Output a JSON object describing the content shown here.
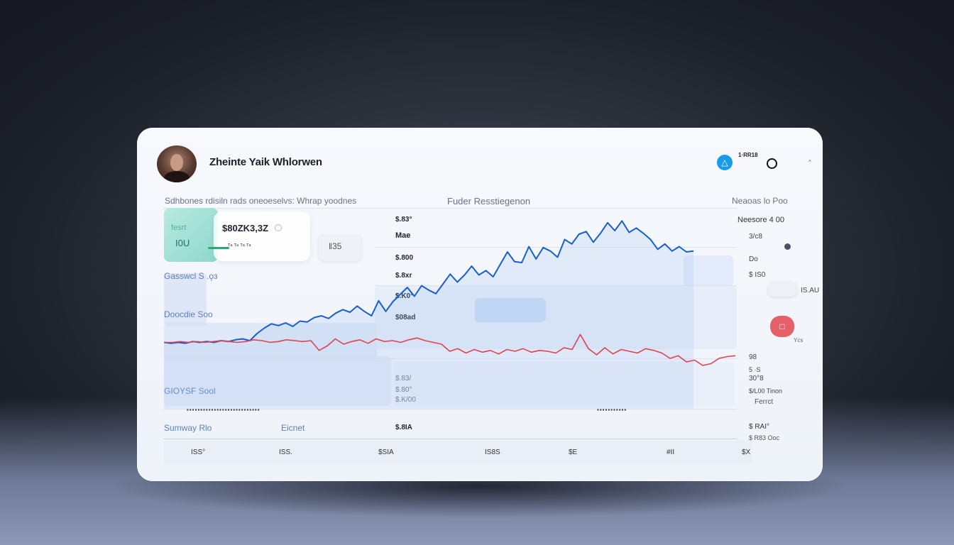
{
  "header": {
    "title": "Zheinte Yaik Whlorwen",
    "icon_a": "triangle-icon",
    "icon_b": "circle-icon",
    "corner_text": "1·RR18",
    "chevron": "^"
  },
  "subheader": {
    "left": "Sdhbones rdisiln rads  oneoeselvs: Whrap yoodnes",
    "center": "Fuder Resstiegenon",
    "right": "Neaoas lo Poo"
  },
  "stats": {
    "teal_label": "fesrt",
    "teal_value": "I0U",
    "amount": "$80ZK3,3Z",
    "amount_sub": "ᵀᵃ ᵀᵃ  ᵀᵃ  ᵀᵃ",
    "chip_label": "ǁ35"
  },
  "left_labels": {
    "l1": "Gasswcl S .ǫɜ",
    "l2": "Doocdie Soo",
    "l3": "GIOYSF Sool",
    "l4": "Sumway Rlo",
    "l5": "Eicnet"
  },
  "mid_labels": [
    "$.83°",
    "Mae",
    "$.800",
    "$.8xr",
    "$.K0°",
    "$08ad",
    "$.83/",
    "$.80°",
    "$.K/00",
    "$.8IA"
  ],
  "right_labels": [
    "Neesore 4  00",
    "3/c8",
    "Do",
    "$ IS0",
    "IS.AU",
    "Ycs",
    "98",
    "5 ·S",
    "30°8",
    "$/L00 Tinon",
    "Ferrct",
    "$ RAI°",
    "$ R83 Ooc"
  ],
  "bottom_labels": [
    "ISS°",
    "ISS.",
    "$SIA",
    "IS8S",
    "$E",
    "#II",
    "$X"
  ],
  "chart_data": {
    "type": "line",
    "series": [
      {
        "color": "#1a5fc7",
        "values": [
          62,
          61,
          62,
          61,
          63,
          62,
          63,
          62,
          64,
          63,
          65,
          66,
          64,
          72,
          78,
          83,
          81,
          84,
          80,
          86,
          85,
          90,
          92,
          89,
          95,
          99,
          96,
          103,
          97,
          92,
          109,
          97,
          108,
          116,
          124,
          114,
          126,
          121,
          117,
          128,
          139,
          130,
          138,
          148,
          138,
          143,
          136,
          150,
          164,
          153,
          152,
          170,
          156,
          169,
          165,
          158,
          178,
          173,
          184,
          187,
          175,
          185,
          197,
          188,
          199,
          186,
          191,
          185,
          178,
          167,
          173,
          165,
          170,
          164,
          165
        ]
      },
      {
        "color": "#e0414f",
        "values": [
          62,
          62,
          63,
          62,
          63,
          62,
          63,
          64,
          63,
          62,
          63,
          65,
          64,
          62,
          63,
          65,
          64,
          63,
          64,
          53,
          58,
          66,
          60,
          63,
          65,
          61,
          66,
          63,
          64,
          62,
          65,
          67,
          64,
          62,
          60,
          52,
          55,
          50,
          54,
          51,
          53,
          49,
          54,
          52,
          55,
          51,
          53,
          52,
          50,
          56,
          54,
          71,
          55,
          48,
          56,
          49,
          54,
          52,
          50,
          55,
          53,
          50,
          44,
          47,
          40,
          42,
          36,
          38,
          44,
          46,
          47
        ]
      }
    ]
  }
}
